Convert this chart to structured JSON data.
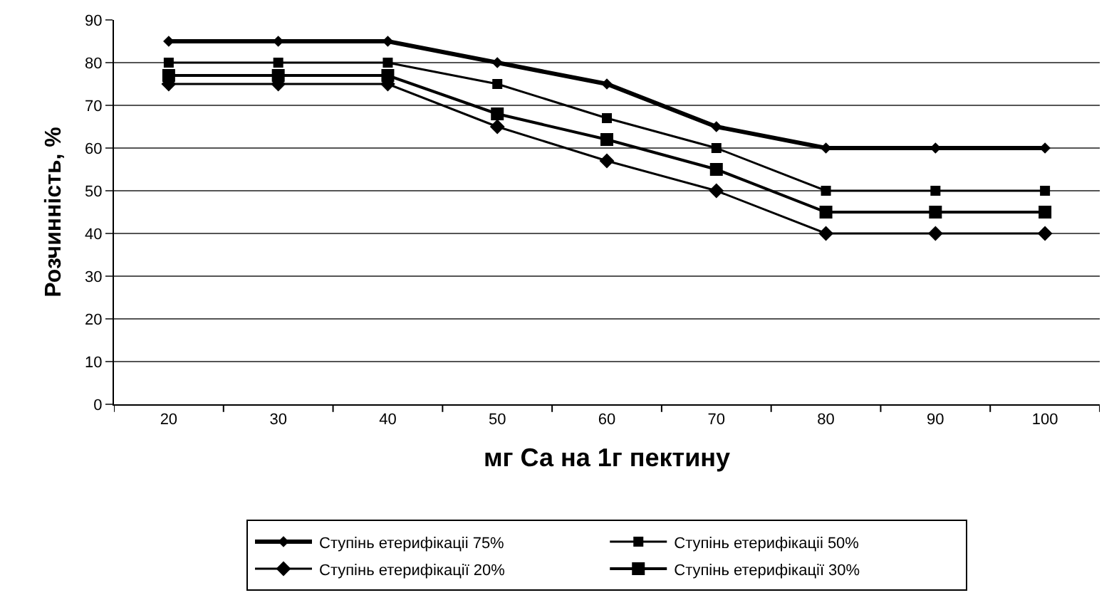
{
  "chart_data": {
    "type": "line",
    "xlabel": "мг Са на 1г пектину",
    "ylabel": "Розчинність, %",
    "categories": [
      "20",
      "30",
      "40",
      "50",
      "60",
      "70",
      "80",
      "90",
      "100"
    ],
    "series": [
      {
        "name": "Ступінь етерифікаціі 75%",
        "color": "#000000",
        "marker": "diamond",
        "values": [
          85,
          85,
          85,
          80,
          75,
          65,
          60,
          60,
          60
        ]
      },
      {
        "name": "Ступінь етерифікаціі 50%",
        "color": "#000000",
        "marker": "square",
        "values": [
          80,
          80,
          80,
          75,
          67,
          60,
          50,
          50,
          50
        ]
      },
      {
        "name": "Ступінь етерифікації 20%",
        "color": "#000000",
        "marker": "diamond",
        "values": [
          75,
          75,
          75,
          65,
          57,
          50,
          40,
          40,
          40
        ]
      },
      {
        "name": "Ступінь етерифікації 30%",
        "color": "#000000",
        "marker": "square",
        "values": [
          77,
          77,
          77,
          68,
          62,
          55,
          45,
          45,
          45
        ]
      }
    ],
    "ylim": [
      0,
      90
    ],
    "yticks": [
      0,
      10,
      20,
      30,
      40,
      50,
      60,
      70,
      80,
      90
    ],
    "grid": "y",
    "legend": "bottom",
    "line_style": "solid"
  }
}
